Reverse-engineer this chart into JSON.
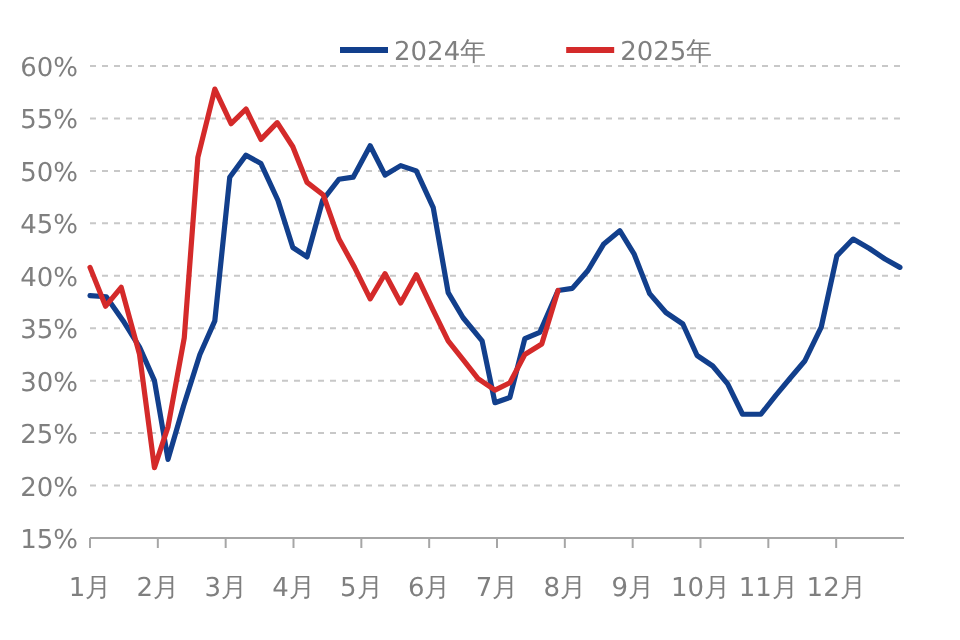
{
  "chart_data": {
    "type": "line",
    "legend": "top",
    "grid": "y",
    "xlim": [
      1,
      13
    ],
    "ylim": [
      15,
      60
    ],
    "xticks": [
      {
        "value": 1,
        "label": "1月"
      },
      {
        "value": 2,
        "label": "2月"
      },
      {
        "value": 3,
        "label": "3月"
      },
      {
        "value": 4,
        "label": "4月"
      },
      {
        "value": 5,
        "label": "5月"
      },
      {
        "value": 6,
        "label": "6月"
      },
      {
        "value": 7,
        "label": "7月"
      },
      {
        "value": 8,
        "label": "8月"
      },
      {
        "value": 9,
        "label": "9月"
      },
      {
        "value": 10,
        "label": "10月"
      },
      {
        "value": 11,
        "label": "11月"
      },
      {
        "value": 12,
        "label": "12月"
      }
    ],
    "yticks": [
      {
        "value": 15,
        "label": "15%"
      },
      {
        "value": 20,
        "label": "20%"
      },
      {
        "value": 25,
        "label": "25%"
      },
      {
        "value": 30,
        "label": "30%"
      },
      {
        "value": 35,
        "label": "35%"
      },
      {
        "value": 40,
        "label": "40%"
      },
      {
        "value": 45,
        "label": "45%"
      },
      {
        "value": 50,
        "label": "50%"
      },
      {
        "value": 55,
        "label": "55%"
      },
      {
        "value": 60,
        "label": "60%"
      }
    ],
    "series": [
      {
        "name": "2024年",
        "color": "#123f8c",
        "x": [
          1.0,
          1.24,
          1.49,
          1.73,
          1.95,
          2.15,
          2.38,
          2.62,
          2.84,
          3.06,
          3.3,
          3.52,
          3.77,
          3.99,
          4.2,
          4.43,
          4.67,
          4.88,
          5.13,
          5.35,
          5.58,
          5.81,
          6.06,
          6.28,
          6.5,
          6.78,
          6.97,
          7.19,
          7.41,
          7.63,
          7.9,
          8.11,
          8.34,
          8.57,
          8.81,
          9.02,
          9.25,
          9.49,
          9.74,
          9.95,
          10.18,
          10.4,
          10.62,
          10.89,
          11.11,
          11.33,
          11.54,
          11.78,
          12.01,
          12.25,
          12.49,
          12.72,
          12.94
        ],
        "values": [
          38.1,
          38.0,
          35.7,
          33.2,
          30.0,
          22.5,
          27.6,
          32.5,
          35.7,
          49.4,
          51.5,
          50.7,
          47.2,
          42.7,
          41.8,
          47.2,
          49.2,
          49.4,
          52.4,
          49.6,
          50.5,
          50.0,
          46.5,
          38.4,
          36.0,
          33.8,
          27.9,
          28.4,
          34.0,
          34.6,
          38.6,
          38.8,
          40.5,
          43.0,
          44.3,
          42.1,
          38.3,
          36.5,
          35.4,
          32.4,
          31.4,
          29.7,
          26.8,
          26.8,
          28.6,
          30.3,
          31.9,
          35.1,
          41.9,
          43.5,
          42.6,
          41.6,
          40.8
        ]
      },
      {
        "name": "2025年",
        "color": "#d42a2a",
        "x": [
          1.0,
          1.23,
          1.46,
          1.73,
          1.95,
          2.15,
          2.39,
          2.59,
          2.84,
          3.08,
          3.3,
          3.52,
          3.76,
          3.99,
          4.2,
          4.44,
          4.67,
          4.9,
          5.13,
          5.35,
          5.58,
          5.81,
          6.06,
          6.28,
          6.5,
          6.72,
          6.97,
          7.19,
          7.41,
          7.66,
          7.9
        ],
        "values": [
          40.8,
          37.1,
          38.9,
          32.5,
          21.7,
          25.6,
          34.1,
          51.3,
          57.8,
          54.5,
          55.9,
          53.0,
          54.6,
          52.3,
          48.9,
          47.7,
          43.5,
          40.8,
          37.8,
          40.2,
          37.4,
          40.1,
          36.7,
          33.8,
          32.0,
          30.2,
          29.1,
          29.8,
          32.5,
          33.5,
          38.6
        ]
      }
    ]
  }
}
